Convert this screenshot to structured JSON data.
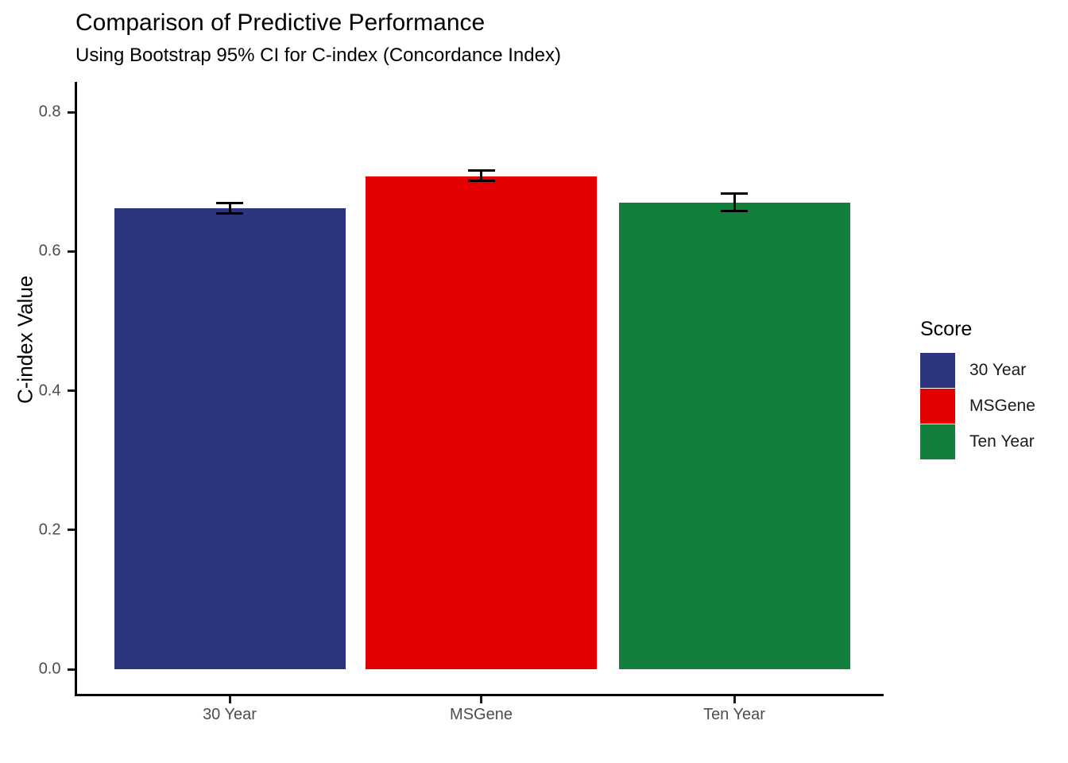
{
  "title": "Comparison of Predictive Performance",
  "subtitle": "Using Bootstrap 95% CI for C-index (Concordance Index)",
  "chart_data": {
    "type": "bar",
    "categories": [
      "30 Year",
      "MSGene",
      "Ten Year"
    ],
    "values": [
      0.662,
      0.708,
      0.67
    ],
    "error_low": [
      0.655,
      0.701,
      0.658
    ],
    "error_high": [
      0.67,
      0.716,
      0.683
    ],
    "title": "Comparison of Predictive Performance",
    "subtitle": "Using Bootstrap 95% CI for C-index (Concordance Index)",
    "xlabel": "",
    "ylabel": "C-index Value",
    "ylim": [
      0,
      0.8
    ],
    "yticks": [
      0.0,
      0.2,
      0.4,
      0.6,
      0.8
    ],
    "grid": false,
    "legend": {
      "title": "Score",
      "position": "right",
      "items": [
        {
          "label": "30 Year",
          "color": "#2D3580"
        },
        {
          "label": "MSGene",
          "color": "#E30000"
        },
        {
          "label": "Ten Year",
          "color": "#12803C"
        }
      ]
    },
    "bar_colors": [
      "#2D3580",
      "#E30000",
      "#12803C"
    ],
    "error_bar_color": "#000000"
  }
}
